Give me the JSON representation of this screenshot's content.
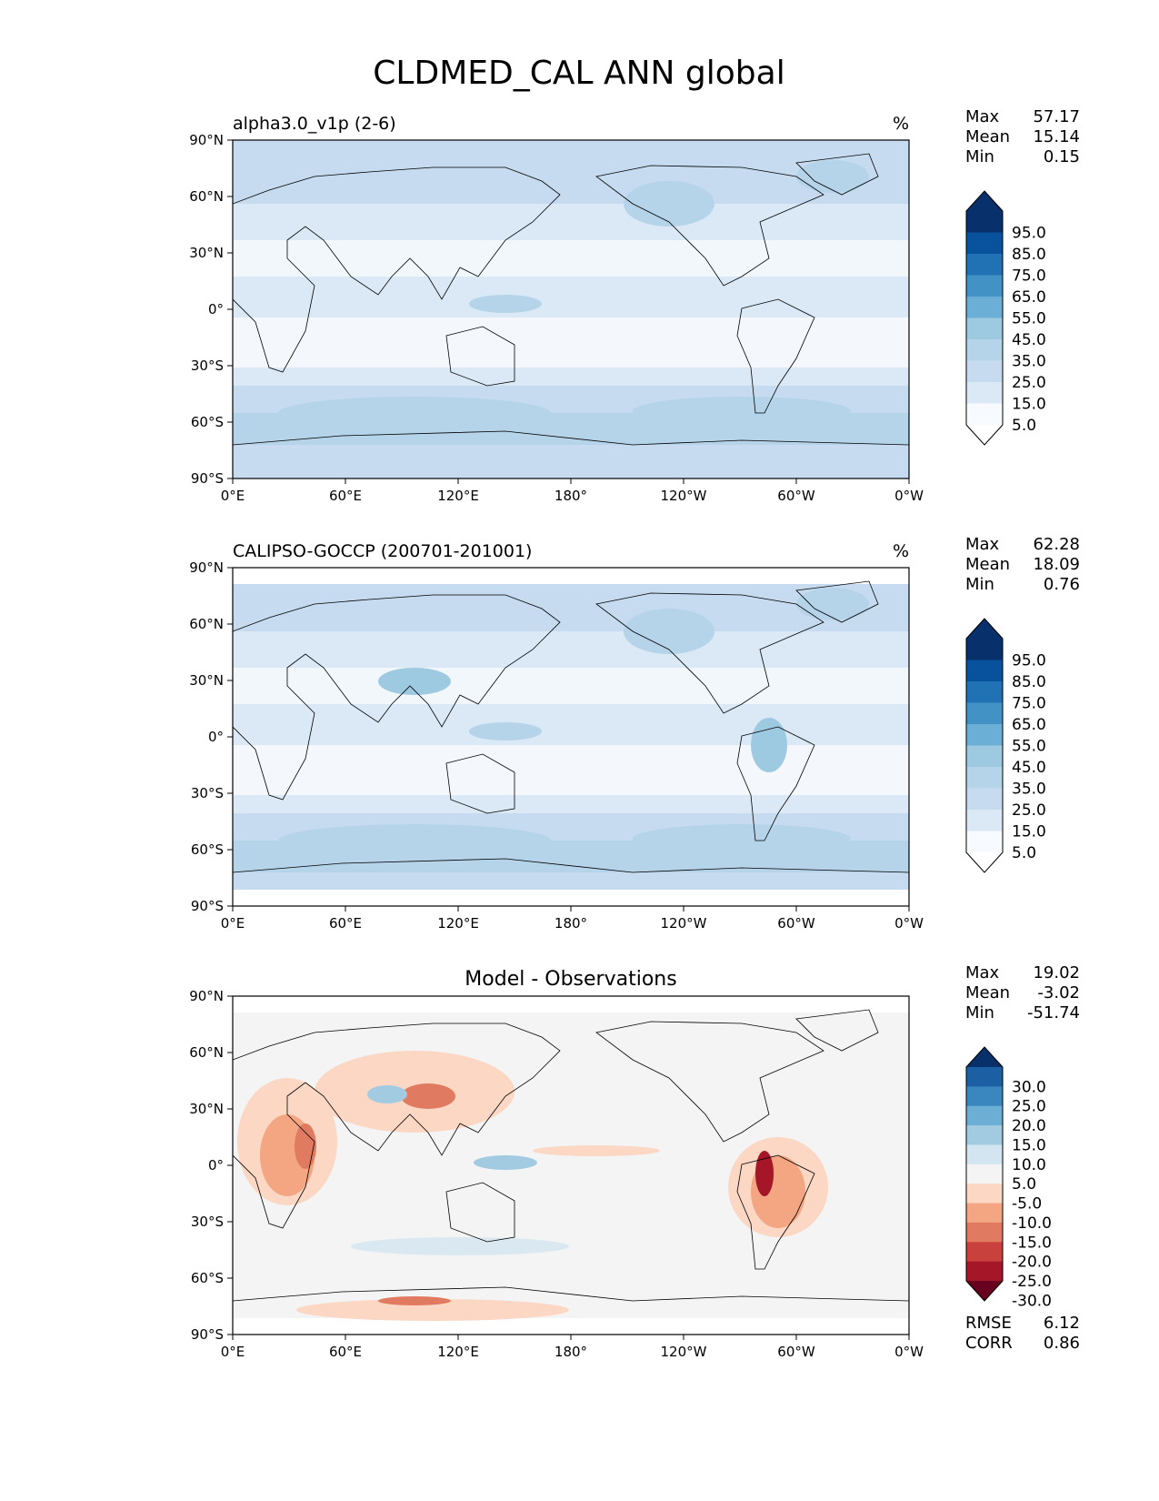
{
  "figure": {
    "title": "CLDMED_CAL ANN global"
  },
  "axes": {
    "lon_ticks": [
      "0°E",
      "60°E",
      "120°E",
      "180°",
      "120°W",
      "60°W",
      "0°W"
    ],
    "lat_ticks": [
      "90°N",
      "60°N",
      "30°N",
      "0°",
      "30°S",
      "60°S",
      "90°S"
    ]
  },
  "panels": [
    {
      "title_left": "alpha3.0_v1p (2-6)",
      "title_center": "",
      "units": "%",
      "stats": [
        {
          "label": "Max",
          "value": "57.17"
        },
        {
          "label": "Mean",
          "value": "15.14"
        },
        {
          "label": "Min",
          "value": "0.15"
        }
      ],
      "colorbar": {
        "labels": [
          "95.0",
          "85.0",
          "75.0",
          "65.0",
          "55.0",
          "45.0",
          "35.0",
          "25.0",
          "15.0",
          "5.0"
        ],
        "colors": [
          "#08306b",
          "#08519c",
          "#2171b5",
          "#4292c6",
          "#6baed6",
          "#9ecae1",
          "#b5d4e9",
          "#c6dbef",
          "#dbe9f6",
          "#f7fbff"
        ],
        "extend": "both",
        "top_color": "#08306b",
        "bottom_color": "#ffffff"
      },
      "extra_stats": []
    },
    {
      "title_left": "CALIPSO-GOCCP (200701-201001)",
      "title_center": "",
      "units": "%",
      "stats": [
        {
          "label": "Max",
          "value": "62.28"
        },
        {
          "label": "Mean",
          "value": "18.09"
        },
        {
          "label": "Min",
          "value": "0.76"
        }
      ],
      "colorbar": {
        "labels": [
          "95.0",
          "85.0",
          "75.0",
          "65.0",
          "55.0",
          "45.0",
          "35.0",
          "25.0",
          "15.0",
          "5.0"
        ],
        "colors": [
          "#08306b",
          "#08519c",
          "#2171b5",
          "#4292c6",
          "#6baed6",
          "#9ecae1",
          "#b5d4e9",
          "#c6dbef",
          "#dbe9f6",
          "#f7fbff"
        ],
        "extend": "both",
        "top_color": "#08306b",
        "bottom_color": "#ffffff"
      },
      "extra_stats": []
    },
    {
      "title_left": "",
      "title_center": "Model - Observations",
      "units": "",
      "stats": [
        {
          "label": "Max",
          "value": "19.02"
        },
        {
          "label": "Mean",
          "value": "-3.02"
        },
        {
          "label": "Min",
          "value": "-51.74"
        }
      ],
      "colorbar": {
        "labels": [
          "30.0",
          "25.0",
          "20.0",
          "15.0",
          "10.0",
          "5.0",
          "-5.0",
          "-10.0",
          "-15.0",
          "-20.0",
          "-25.0",
          "-30.0"
        ],
        "colors": [
          "#1d5fa3",
          "#3a87c0",
          "#6caed4",
          "#a2cbe2",
          "#d2e5f0",
          "#f4f4f4",
          "#fbd7c4",
          "#f4a582",
          "#e07b62",
          "#c9413d",
          "#a41628"
        ],
        "extend": "both",
        "top_color": "#08306b",
        "bottom_color": "#67001f"
      },
      "extra_stats": [
        {
          "label": "RMSE",
          "value": "6.12"
        },
        {
          "label": "CORR",
          "value": "0.86"
        }
      ]
    }
  ]
}
